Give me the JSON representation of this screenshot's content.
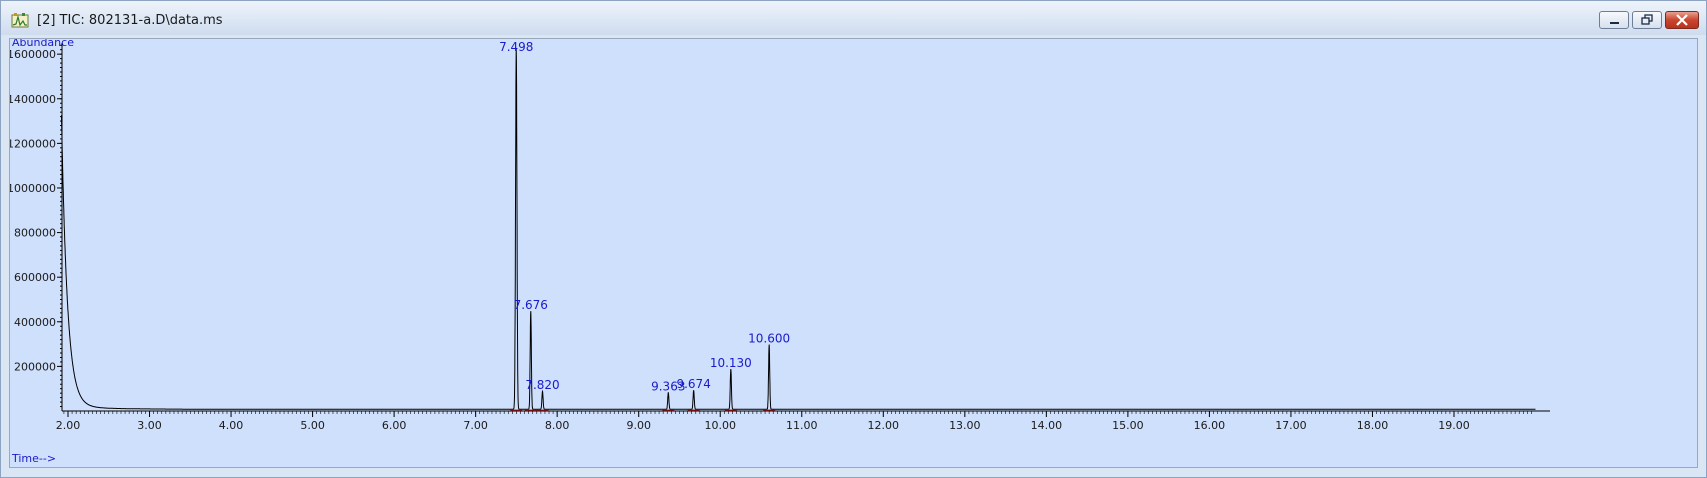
{
  "window": {
    "title": "[2] TIC: 802131-a.D\\data.ms",
    "controls": [
      "minimize",
      "maximize",
      "close"
    ],
    "icon": "chromatogram-app-icon"
  },
  "chart_data": {
    "type": "line",
    "ylabel": "Abundance",
    "xlabel": "Time-->",
    "xlim": [
      1.92,
      20.0
    ],
    "ylim": [
      0,
      1650000
    ],
    "x_ticks": [
      "2.00",
      "3.00",
      "4.00",
      "5.00",
      "6.00",
      "7.00",
      "8.00",
      "9.00",
      "10.00",
      "11.00",
      "12.00",
      "13.00",
      "14.00",
      "15.00",
      "16.00",
      "17.00",
      "18.00",
      "19.00"
    ],
    "y_ticks": [
      "200000",
      "400000",
      "600000",
      "800000",
      "1000000",
      "1200000",
      "1400000",
      "1600000"
    ],
    "grid": false,
    "line_color": "#000000",
    "label_color": "#1a1acc",
    "peaks": [
      {
        "label": "7.498",
        "rt": 7.498,
        "abundance": 1620000
      },
      {
        "label": "7.676",
        "rt": 7.676,
        "abundance": 440000
      },
      {
        "label": "7.820",
        "rt": 7.82,
        "abundance": 80000
      },
      {
        "label": "9.363",
        "rt": 9.363,
        "abundance": 75000
      },
      {
        "label": "9.674",
        "rt": 9.674,
        "abundance": 85000
      },
      {
        "label": "10.130",
        "rt": 10.13,
        "abundance": 180000
      },
      {
        "label": "10.600",
        "rt": 10.6,
        "abundance": 290000
      }
    ],
    "solvent_front": {
      "start_abundance": 1300000,
      "decay_end_rt": 3.4
    }
  }
}
